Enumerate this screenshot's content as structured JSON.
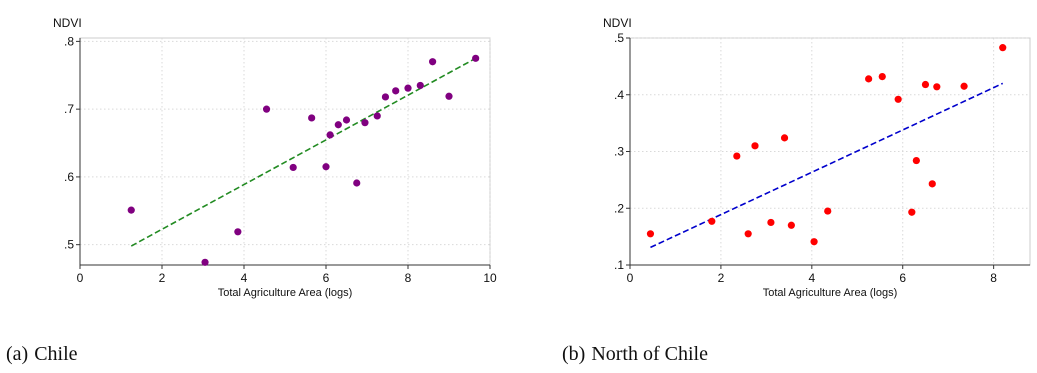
{
  "chart_data": [
    {
      "type": "scatter",
      "title": "",
      "ylabel": "NDVI",
      "xlabel": "Total Agriculture Area (logs)",
      "xlim": [
        0,
        10
      ],
      "ylim": [
        0.47,
        0.805
      ],
      "xticks": [
        0,
        2,
        4,
        6,
        8,
        10
      ],
      "xtick_labels": [
        "0",
        "2",
        "4",
        "6",
        "8",
        "10"
      ],
      "yticks": [
        0.5,
        0.6,
        0.7,
        0.8
      ],
      "ytick_labels": [
        ".5",
        ".6",
        ".7",
        ".8"
      ],
      "grid": true,
      "point_color": "#800080",
      "fit_color": "#228B22",
      "points": [
        {
          "x": 1.25,
          "y": 0.551
        },
        {
          "x": 3.05,
          "y": 0.474
        },
        {
          "x": 3.85,
          "y": 0.519
        },
        {
          "x": 4.55,
          "y": 0.7
        },
        {
          "x": 5.2,
          "y": 0.614
        },
        {
          "x": 5.65,
          "y": 0.687
        },
        {
          "x": 6.0,
          "y": 0.615
        },
        {
          "x": 6.1,
          "y": 0.662
        },
        {
          "x": 6.3,
          "y": 0.677
        },
        {
          "x": 6.5,
          "y": 0.684
        },
        {
          "x": 6.75,
          "y": 0.591
        },
        {
          "x": 6.95,
          "y": 0.68
        },
        {
          "x": 7.25,
          "y": 0.69
        },
        {
          "x": 7.45,
          "y": 0.718
        },
        {
          "x": 7.7,
          "y": 0.727
        },
        {
          "x": 8.0,
          "y": 0.731
        },
        {
          "x": 8.3,
          "y": 0.735
        },
        {
          "x": 8.6,
          "y": 0.77
        },
        {
          "x": 9.0,
          "y": 0.719
        },
        {
          "x": 9.65,
          "y": 0.775
        }
      ],
      "fit": {
        "x": [
          1.25,
          9.65
        ],
        "y": [
          0.498,
          0.775
        ]
      }
    },
    {
      "type": "scatter",
      "title": "",
      "ylabel": "NDVI",
      "xlabel": "Total Agriculture Area (logs)",
      "xlim": [
        0,
        8.8
      ],
      "ylim": [
        0.1,
        0.5
      ],
      "xticks": [
        0,
        2,
        4,
        6,
        8
      ],
      "xtick_labels": [
        "0",
        "2",
        "4",
        "6",
        "8"
      ],
      "yticks": [
        0.1,
        0.2,
        0.3,
        0.4,
        0.5
      ],
      "ytick_labels": [
        ".1",
        ".2",
        ".3",
        ".4",
        ".5"
      ],
      "grid": true,
      "point_color": "#ff0000",
      "fit_color": "#0000cc",
      "points": [
        {
          "x": 0.45,
          "y": 0.155
        },
        {
          "x": 1.8,
          "y": 0.177
        },
        {
          "x": 2.35,
          "y": 0.292
        },
        {
          "x": 2.6,
          "y": 0.155
        },
        {
          "x": 2.75,
          "y": 0.31
        },
        {
          "x": 3.1,
          "y": 0.175
        },
        {
          "x": 3.4,
          "y": 0.324
        },
        {
          "x": 3.55,
          "y": 0.17
        },
        {
          "x": 4.05,
          "y": 0.141
        },
        {
          "x": 4.35,
          "y": 0.195
        },
        {
          "x": 5.25,
          "y": 0.428
        },
        {
          "x": 5.55,
          "y": 0.432
        },
        {
          "x": 5.9,
          "y": 0.392
        },
        {
          "x": 6.2,
          "y": 0.193
        },
        {
          "x": 6.3,
          "y": 0.284
        },
        {
          "x": 6.5,
          "y": 0.418
        },
        {
          "x": 6.65,
          "y": 0.243
        },
        {
          "x": 6.75,
          "y": 0.414
        },
        {
          "x": 7.35,
          "y": 0.415
        },
        {
          "x": 8.2,
          "y": 0.483
        }
      ],
      "fit": {
        "x": [
          0.45,
          8.2
        ],
        "y": [
          0.131,
          0.42
        ]
      }
    }
  ],
  "captions": [
    {
      "tag": "(a)",
      "text": "Chile"
    },
    {
      "tag": "(b)",
      "text": "North of Chile"
    }
  ]
}
